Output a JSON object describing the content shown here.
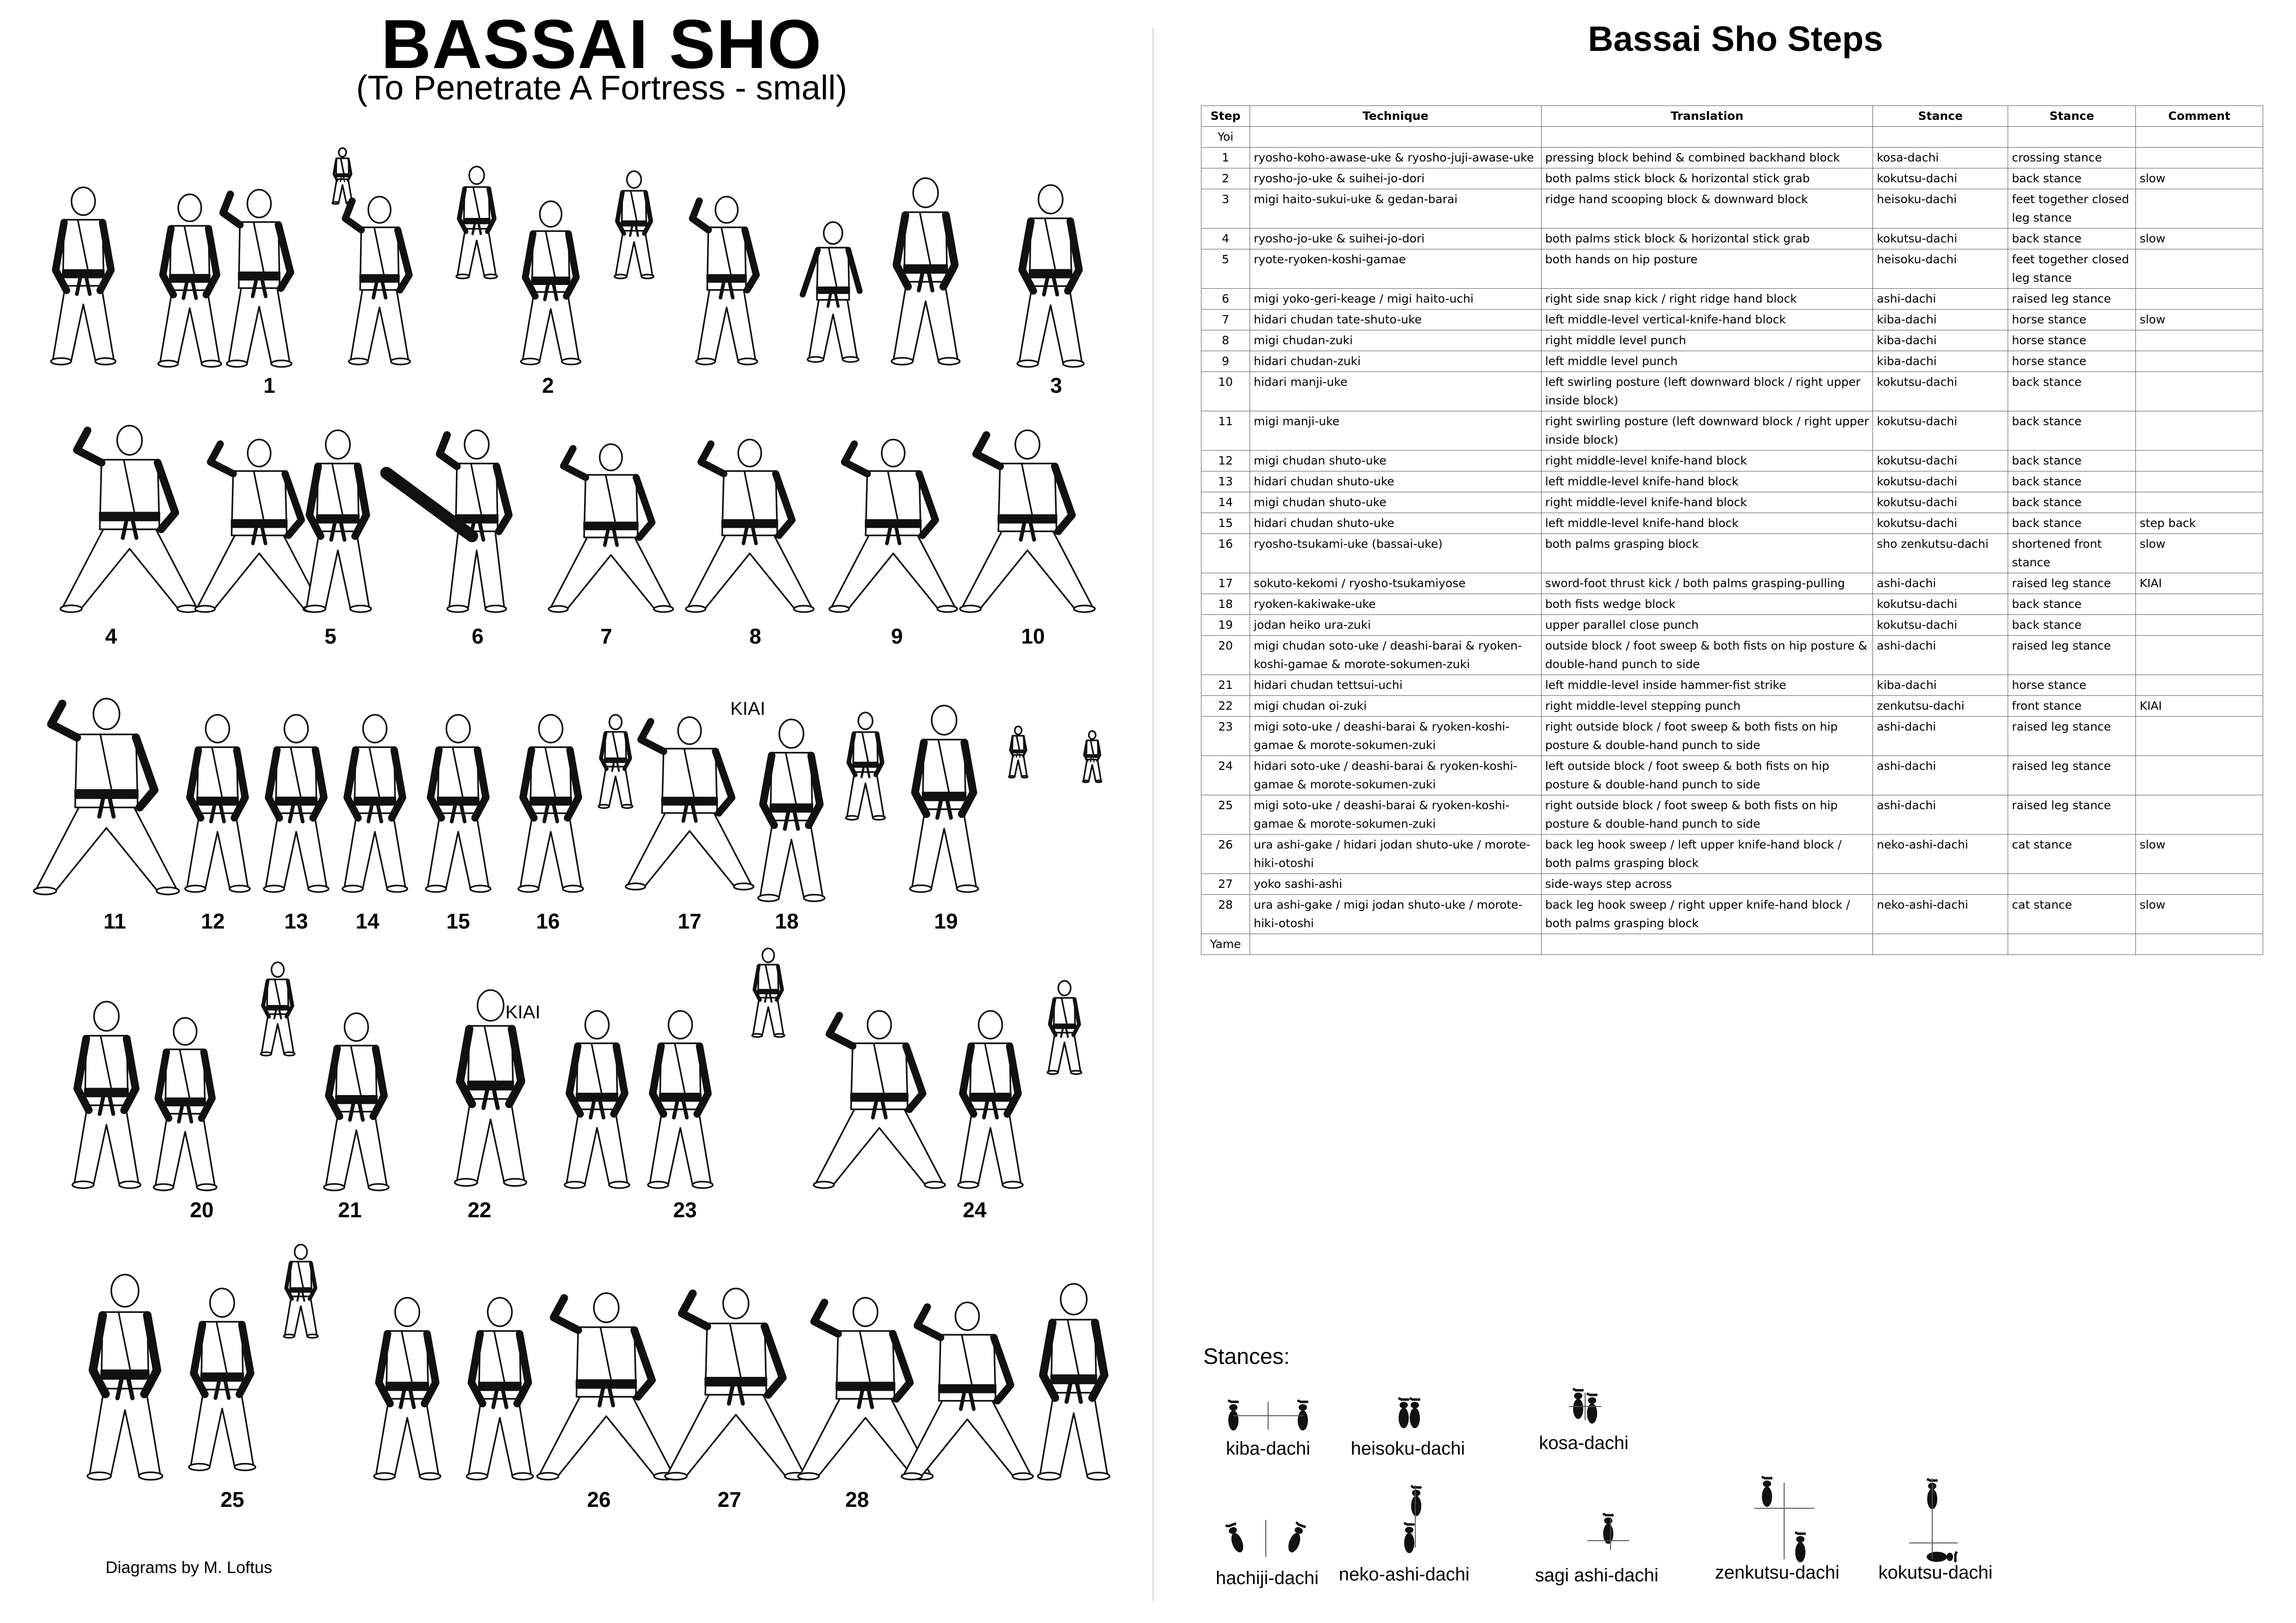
{
  "header": {
    "title": "BASSAI SHO",
    "subtitle": "(To Penetrate A Fortress - small)"
  },
  "figure_rows": [
    {
      "labels": [
        "1",
        "2",
        "3"
      ]
    },
    {
      "labels": [
        "4",
        "5",
        "6",
        "7",
        "8",
        "9",
        "10"
      ]
    },
    {
      "labels": [
        "11",
        "12",
        "13",
        "14",
        "15",
        "16",
        "17",
        "18",
        "19"
      ]
    },
    {
      "labels": [
        "20",
        "21",
        "22",
        "23",
        "24"
      ]
    },
    {
      "labels": [
        "25",
        "26",
        "27",
        "28"
      ]
    }
  ],
  "kiai_marks": [
    "KIAI",
    "KIAI"
  ],
  "credit": "Diagrams by M. Loftus",
  "steps": {
    "title": "Bassai Sho Steps",
    "columns": [
      "Step",
      "Technique",
      "Translation",
      "Stance",
      "Stance",
      "Comment"
    ],
    "rows": [
      [
        "Yoi",
        "",
        "",
        "",
        "",
        ""
      ],
      [
        "1",
        "ryosho-koho-awase-uke & ryosho-juji-awase-uke",
        "pressing block behind & combined backhand block",
        "kosa-dachi",
        "crossing stance",
        ""
      ],
      [
        "2",
        "ryosho-jo-uke & suihei-jo-dori",
        "both palms stick block & horizontal stick grab",
        "kokutsu-dachi",
        "back stance",
        "slow"
      ],
      [
        "3",
        "migi haito-sukui-uke & gedan-barai",
        "ridge hand scooping block & downward block",
        "heisoku-dachi",
        "feet together closed leg stance",
        ""
      ],
      [
        "4",
        "ryosho-jo-uke & suihei-jo-dori",
        "both palms stick block & horizontal stick grab",
        "kokutsu-dachi",
        "back stance",
        "slow"
      ],
      [
        "5",
        "ryote-ryoken-koshi-gamae",
        "both hands on hip posture",
        "heisoku-dachi",
        "feet together closed leg stance",
        ""
      ],
      [
        "6",
        "migi yoko-geri-keage / migi haito-uchi",
        "right side snap kick / right ridge hand block",
        "ashi-dachi",
        "raised leg stance",
        ""
      ],
      [
        "7",
        "hidari chudan tate-shuto-uke",
        "left middle-level vertical-knife-hand block",
        "kiba-dachi",
        "horse stance",
        "slow"
      ],
      [
        "8",
        "migi chudan-zuki",
        "right middle level punch",
        "kiba-dachi",
        "horse stance",
        ""
      ],
      [
        "9",
        "hidari chudan-zuki",
        "left middle level punch",
        "kiba-dachi",
        "horse stance",
        ""
      ],
      [
        "10",
        "hidari manji-uke",
        "left  swirling posture  (left downward block  / right upper inside block)",
        "kokutsu-dachi",
        "back stance",
        ""
      ],
      [
        "11",
        "migi manji-uke",
        "right  swirling posture  (left downward block  / right upper inside block)",
        "kokutsu-dachi",
        "back stance",
        ""
      ],
      [
        "12",
        "migi chudan shuto-uke",
        "right middle-level knife-hand block",
        "kokutsu-dachi",
        "back stance",
        ""
      ],
      [
        "13",
        "hidari chudan shuto-uke",
        "left middle-level knife-hand block",
        "kokutsu-dachi",
        "back stance",
        ""
      ],
      [
        "14",
        "migi chudan shuto-uke",
        "right middle-level knife-hand block",
        "kokutsu-dachi",
        "back stance",
        ""
      ],
      [
        "15",
        "hidari chudan shuto-uke",
        "left middle-level knife-hand block",
        "kokutsu-dachi",
        "back stance",
        "step back"
      ],
      [
        "16",
        "ryosho-tsukami-uke (bassai-uke)",
        "both palms grasping block",
        "sho zenkutsu-dachi",
        "shortened front stance",
        "slow"
      ],
      [
        "17",
        "sokuto-kekomi / ryosho-tsukamiyose",
        "sword-foot thrust kick / both palms grasping-pulling",
        "ashi-dachi",
        "raised leg stance",
        "KIAI"
      ],
      [
        "18",
        "ryoken-kakiwake-uke",
        "both fists wedge block",
        "kokutsu-dachi",
        "back stance",
        ""
      ],
      [
        "19",
        "jodan heiko ura-zuki",
        "upper parallel close punch",
        "kokutsu-dachi",
        "back stance",
        ""
      ],
      [
        "20",
        "migi chudan soto-uke / deashi-barai & ryoken-koshi-gamae & morote-sokumen-zuki",
        "outside block / foot sweep & both fists on hip posture & double-hand punch to side",
        "ashi-dachi",
        "raised leg stance",
        ""
      ],
      [
        "21",
        "hidari chudan tettsui-uchi",
        "left middle-level inside hammer-fist strike",
        "kiba-dachi",
        "horse stance",
        ""
      ],
      [
        "22",
        "migi chudan oi-zuki",
        "right middle-level stepping punch",
        "zenkutsu-dachi",
        "front stance",
        "KIAI"
      ],
      [
        "23",
        "migi soto-uke / deashi-barai & ryoken-koshi-gamae & morote-sokumen-zuki",
        "right outside block / foot sweep & both fists on hip posture & double-hand punch to side",
        "ashi-dachi",
        "raised leg stance",
        ""
      ],
      [
        "24",
        "hidari soto-uke / deashi-barai & ryoken-koshi-gamae & morote-sokumen-zuki",
        "left outside block / foot sweep & both fists on hip posture & double-hand punch to side",
        "ashi-dachi",
        "raised leg stance",
        ""
      ],
      [
        "25",
        "migi soto-uke / deashi-barai & ryoken-koshi-gamae & morote-sokumen-zuki",
        "right outside block / foot sweep & both fists on hip posture & double-hand punch to side",
        "ashi-dachi",
        "raised leg stance",
        ""
      ],
      [
        "26",
        "ura ashi-gake / hidari jodan shuto-uke / morote-hiki-otoshi",
        "back leg hook sweep / left upper knife-hand block / both palms grasping block",
        "neko-ashi-dachi",
        "cat stance",
        "slow"
      ],
      [
        "27",
        "yoko sashi-ashi",
        "side-ways step across",
        "",
        "",
        ""
      ],
      [
        "28",
        "ura ashi-gake / migi jodan shuto-uke / morote-hiki-otoshi",
        "back leg hook sweep / right upper knife-hand block / both palms grasping block",
        "neko-ashi-dachi",
        "cat stance",
        "slow"
      ],
      [
        "Yame",
        "",
        "",
        "",
        "",
        ""
      ]
    ]
  },
  "stances": {
    "label": "Stances:",
    "items": [
      "kiba-dachi",
      "heisoku-dachi",
      "kosa-dachi",
      "hachiji-dachi",
      "neko-ashi-dachi",
      "sagi ashi-dachi",
      "zenkutsu-dachi",
      "kokutsu-dachi"
    ]
  }
}
